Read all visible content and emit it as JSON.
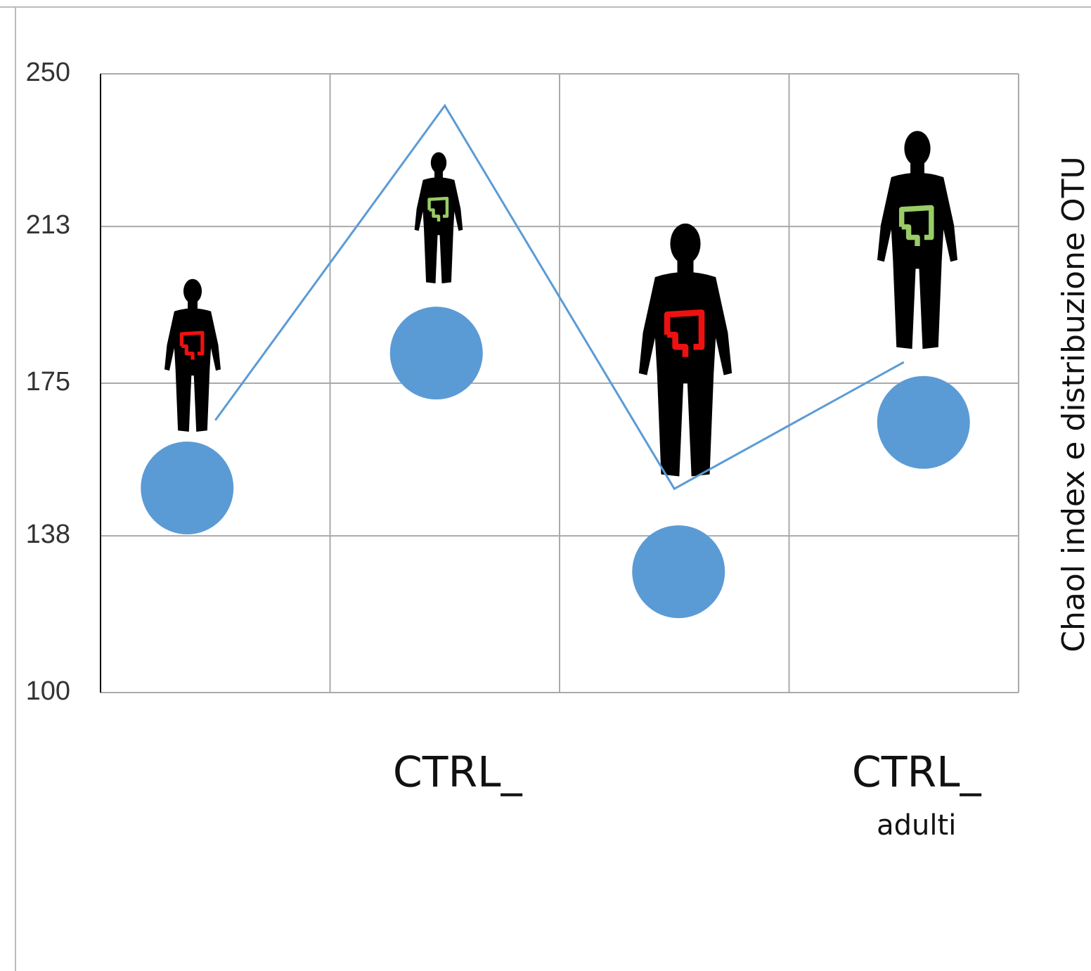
{
  "chart_data": {
    "type": "line",
    "y_axis_label": "Chaol index e distribuzione OTU",
    "categories": [
      null,
      "CTRL_",
      null,
      "CTRL_"
    ],
    "category_sublabels": [
      null,
      null,
      null,
      "adulti"
    ],
    "series": [
      {
        "type": "line",
        "color": "#5b9bd5",
        "values": [
          166,
          242.3,
          149.4,
          180.1
        ]
      },
      {
        "type": "scatter",
        "color": "#5b9bd5",
        "values": [
          149.6,
          182.3,
          129.3,
          165.5
        ]
      }
    ],
    "ylim": [
      100,
      250
    ],
    "yticks": [
      100,
      138,
      175,
      213,
      250
    ],
    "grid": true
  }
}
